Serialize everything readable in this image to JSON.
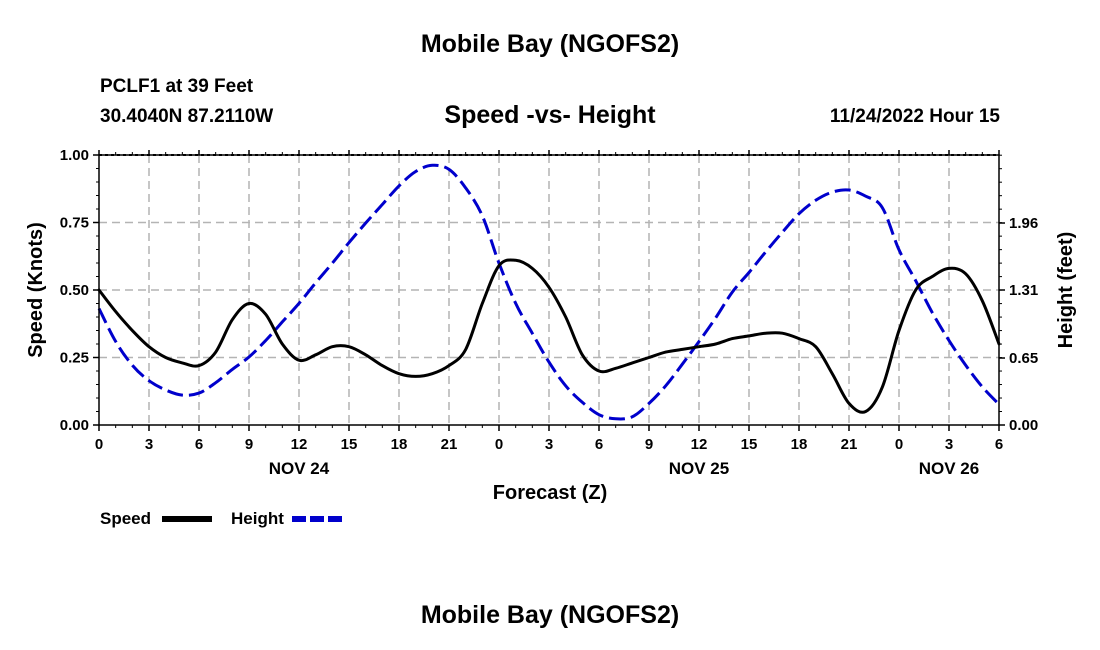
{
  "page": {
    "title_top": "Mobile Bay (NGOFS2)",
    "title_bottom": "Mobile Bay (NGOFS2)",
    "station": "PCLF1 at 39 Feet",
    "coords": "30.4040N  87.2110W",
    "chart_title": "Speed -vs- Height",
    "timestamp": "11/24/2022 Hour 15"
  },
  "chart_data": {
    "type": "line",
    "title": "Speed -vs- Height",
    "xlabel": "Forecast (Z)",
    "ylabel": "Speed (Knots)",
    "y2label": "Height (feet)",
    "x_range_hours": [
      0,
      54
    ],
    "ylim": [
      0,
      1.0
    ],
    "y2lim": [
      0,
      2.62
    ],
    "y_ticks": [
      "0.00",
      "0.25",
      "0.50",
      "0.75",
      "1.00"
    ],
    "y2_ticks": [
      "0.00",
      "0.65",
      "1.31",
      "1.96"
    ],
    "y2_tick_values": [
      0.0,
      0.65,
      1.31,
      1.96
    ],
    "x_ticks": [
      {
        "h": 0,
        "label": "0"
      },
      {
        "h": 3,
        "label": "3"
      },
      {
        "h": 6,
        "label": "6"
      },
      {
        "h": 9,
        "label": "9"
      },
      {
        "h": 12,
        "label": "12"
      },
      {
        "h": 15,
        "label": "15"
      },
      {
        "h": 18,
        "label": "18"
      },
      {
        "h": 21,
        "label": "21"
      },
      {
        "h": 24,
        "label": "0"
      },
      {
        "h": 27,
        "label": "3"
      },
      {
        "h": 30,
        "label": "6"
      },
      {
        "h": 33,
        "label": "9"
      },
      {
        "h": 36,
        "label": "12"
      },
      {
        "h": 39,
        "label": "15"
      },
      {
        "h": 42,
        "label": "18"
      },
      {
        "h": 45,
        "label": "21"
      },
      {
        "h": 48,
        "label": "0"
      },
      {
        "h": 51,
        "label": "3"
      },
      {
        "h": 54,
        "label": "6"
      }
    ],
    "date_labels": [
      {
        "h": 12,
        "label": "NOV 24"
      },
      {
        "h": 36,
        "label": "NOV 25"
      },
      {
        "h": 51,
        "label": "NOV 26"
      }
    ],
    "grid": true,
    "legend_position": "bottom-left",
    "series": [
      {
        "name": "Speed",
        "axis": "left",
        "color": "#000000",
        "style": "solid",
        "x": [
          0,
          1,
          2,
          3,
          4,
          5,
          6,
          7,
          8,
          9,
          10,
          11,
          12,
          13,
          14,
          15,
          16,
          17,
          18,
          19,
          20,
          21,
          22,
          23,
          24,
          25,
          26,
          27,
          28,
          29,
          30,
          31,
          32,
          33,
          34,
          35,
          36,
          37,
          38,
          39,
          40,
          41,
          42,
          43,
          44,
          45,
          46,
          47,
          48,
          49,
          50,
          51,
          52,
          53,
          54
        ],
        "values": [
          0.5,
          0.42,
          0.35,
          0.29,
          0.25,
          0.23,
          0.22,
          0.27,
          0.39,
          0.45,
          0.41,
          0.3,
          0.24,
          0.26,
          0.29,
          0.29,
          0.26,
          0.22,
          0.19,
          0.18,
          0.19,
          0.22,
          0.28,
          0.45,
          0.59,
          0.61,
          0.58,
          0.51,
          0.4,
          0.26,
          0.2,
          0.21,
          0.23,
          0.25,
          0.27,
          0.28,
          0.29,
          0.3,
          0.32,
          0.33,
          0.34,
          0.34,
          0.32,
          0.29,
          0.19,
          0.08,
          0.05,
          0.14,
          0.35,
          0.5,
          0.55,
          0.58,
          0.56,
          0.46,
          0.3
        ]
      },
      {
        "name": "Height",
        "axis": "right",
        "color": "#0000cc",
        "style": "dashed",
        "x": [
          0,
          1,
          2,
          3,
          4,
          5,
          6,
          7,
          8,
          9,
          10,
          11,
          12,
          13,
          14,
          15,
          16,
          17,
          18,
          19,
          20,
          21,
          22,
          23,
          24,
          25,
          26,
          27,
          28,
          29,
          30,
          31,
          32,
          33,
          34,
          35,
          36,
          37,
          38,
          39,
          40,
          41,
          42,
          43,
          44,
          45,
          46,
          47,
          48,
          49,
          50,
          51,
          52,
          53,
          54
        ],
        "values": [
          1.13,
          0.81,
          0.58,
          0.43,
          0.34,
          0.29,
          0.31,
          0.41,
          0.54,
          0.66,
          0.82,
          1.0,
          1.18,
          1.38,
          1.57,
          1.77,
          1.96,
          2.14,
          2.32,
          2.46,
          2.52,
          2.48,
          2.3,
          2.03,
          1.57,
          1.18,
          0.89,
          0.61,
          0.38,
          0.22,
          0.1,
          0.06,
          0.08,
          0.21,
          0.38,
          0.59,
          0.81,
          1.04,
          1.29,
          1.48,
          1.68,
          1.87,
          2.05,
          2.18,
          2.26,
          2.28,
          2.22,
          2.11,
          1.7,
          1.4,
          1.09,
          0.82,
          0.58,
          0.37,
          0.2
        ]
      }
    ]
  }
}
